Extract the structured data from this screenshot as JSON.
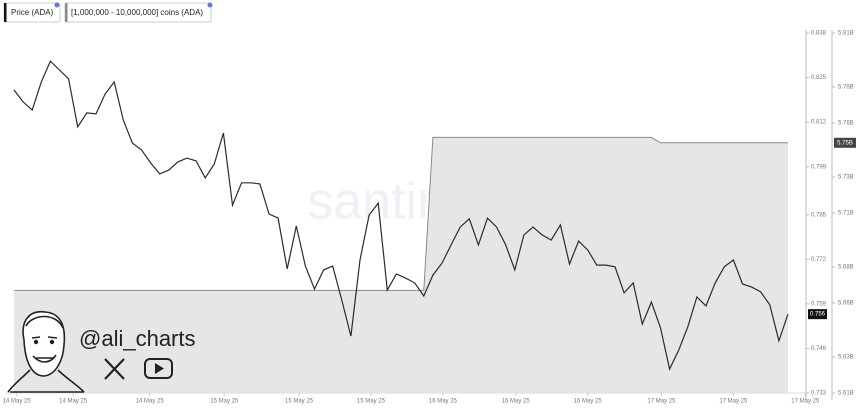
{
  "chart_data": {
    "type": "line",
    "series": [
      {
        "name": "Price (ADA)",
        "color": "#2b2b2b",
        "axis": "y",
        "values": [
          0.8214,
          0.8179,
          0.8155,
          0.8237,
          0.8298,
          0.8272,
          0.8246,
          0.8106,
          0.8147,
          0.8144,
          0.8202,
          0.8237,
          0.8126,
          0.8059,
          0.8039,
          0.8001,
          0.7969,
          0.798,
          0.8004,
          0.8015,
          0.8007,
          0.7957,
          0.7998,
          0.8088,
          0.7878,
          0.7943,
          0.7943,
          0.794,
          0.7852,
          0.784,
          0.7692,
          0.7817,
          0.77,
          0.7633,
          0.7689,
          0.77,
          0.7601,
          0.7496,
          0.7718,
          0.7849,
          0.7884,
          0.763,
          0.7677,
          0.7665,
          0.7651,
          0.7613,
          0.7674,
          0.7709,
          0.7762,
          0.7814,
          0.7838,
          0.7762,
          0.784,
          0.7814,
          0.7762,
          0.7689,
          0.7791,
          0.7814,
          0.7791,
          0.7776,
          0.782,
          0.7706,
          0.7773,
          0.7747,
          0.7703,
          0.7703,
          0.7698,
          0.7622,
          0.7651,
          0.7531,
          0.7595,
          0.752,
          0.74,
          0.7455,
          0.7523,
          0.761,
          0.7584,
          0.7651,
          0.7698,
          0.7718,
          0.7648,
          0.7639,
          0.7625,
          0.7587,
          0.7482,
          0.756
        ]
      },
      {
        "name": "[1,000,000 - 10,000,000] coins (ADA)",
        "color": "#8a8a8a",
        "fill": "#e6e6e6",
        "axis": "y2",
        "last_label": "5.75B",
        "values": [
          5667000000,
          5667000000,
          5667000000,
          5667000000,
          5667000000,
          5667000000,
          5667000000,
          5667000000,
          5667000000,
          5667000000,
          5667000000,
          5667000000,
          5667000000,
          5667000000,
          5667000000,
          5667000000,
          5667000000,
          5667000000,
          5667000000,
          5667000000,
          5667000000,
          5667000000,
          5667000000,
          5667000000,
          5667000000,
          5667000000,
          5667000000,
          5667000000,
          5667000000,
          5667000000,
          5667000000,
          5667000000,
          5667000000,
          5667000000,
          5667000000,
          5667000000,
          5667000000,
          5667000000,
          5667000000,
          5667000000,
          5667000000,
          5667000000,
          5667000000,
          5667000000,
          5667000000,
          5667000000,
          5752000000,
          5752000000,
          5752000000,
          5752000000,
          5752000000,
          5752000000,
          5752000000,
          5752000000,
          5752000000,
          5752000000,
          5752000000,
          5752000000,
          5752000000,
          5752000000,
          5752000000,
          5752000000,
          5752000000,
          5752000000,
          5752000000,
          5752000000,
          5752000000,
          5752000000,
          5752000000,
          5752000000,
          5752000000,
          5749000000,
          5749000000,
          5749000000,
          5749000000,
          5749000000,
          5749000000,
          5749000000,
          5749000000,
          5749000000,
          5749000000,
          5749000000,
          5749000000,
          5749000000,
          5749000000,
          5749000000
        ]
      }
    ],
    "xlim": [
      0,
      85
    ],
    "xticks": [
      {
        "value": 0.3,
        "label": "14 May 25"
      },
      {
        "value": 6.5,
        "label": "14 May 25"
      },
      {
        "value": 14.9,
        "label": "14 May 25"
      },
      {
        "value": 23.1,
        "label": "15 May 25"
      },
      {
        "value": 31.3,
        "label": "15 May 25"
      },
      {
        "value": 39.2,
        "label": "15 May 25"
      },
      {
        "value": 47.1,
        "label": "16 May 25"
      },
      {
        "value": 55.1,
        "label": "16 May 25"
      },
      {
        "value": 63.0,
        "label": "16 May 25"
      },
      {
        "value": 71.1,
        "label": "17 May 25"
      },
      {
        "value": 79.0,
        "label": "17 May 25"
      },
      {
        "value": 86.9,
        "label": "17 May 25"
      }
    ],
    "ylim": [
      0.733,
      0.838
    ],
    "yticks": [
      0.838,
      0.825,
      0.812,
      0.799,
      0.785,
      0.772,
      0.759,
      0.746,
      0.733
    ],
    "y2lim": [
      5610000000,
      5810000000
    ],
    "y2ticks": [
      {
        "value": 5810000000,
        "label": "5.81B"
      },
      {
        "value": 5780000000,
        "label": "5.78B"
      },
      {
        "value": 5760000000,
        "label": "5.76B"
      },
      {
        "value": 5730000000,
        "label": "5.73B"
      },
      {
        "value": 5710000000,
        "label": "5.71B"
      },
      {
        "value": 5680000000,
        "label": "5.68B"
      },
      {
        "value": 5660000000,
        "label": "5.66B"
      },
      {
        "value": 5630000000,
        "label": "5.63B"
      },
      {
        "value": 5610000000,
        "label": "5.61B"
      }
    ]
  },
  "watermark": "santiment",
  "branding": {
    "handle": "@ali_charts"
  }
}
